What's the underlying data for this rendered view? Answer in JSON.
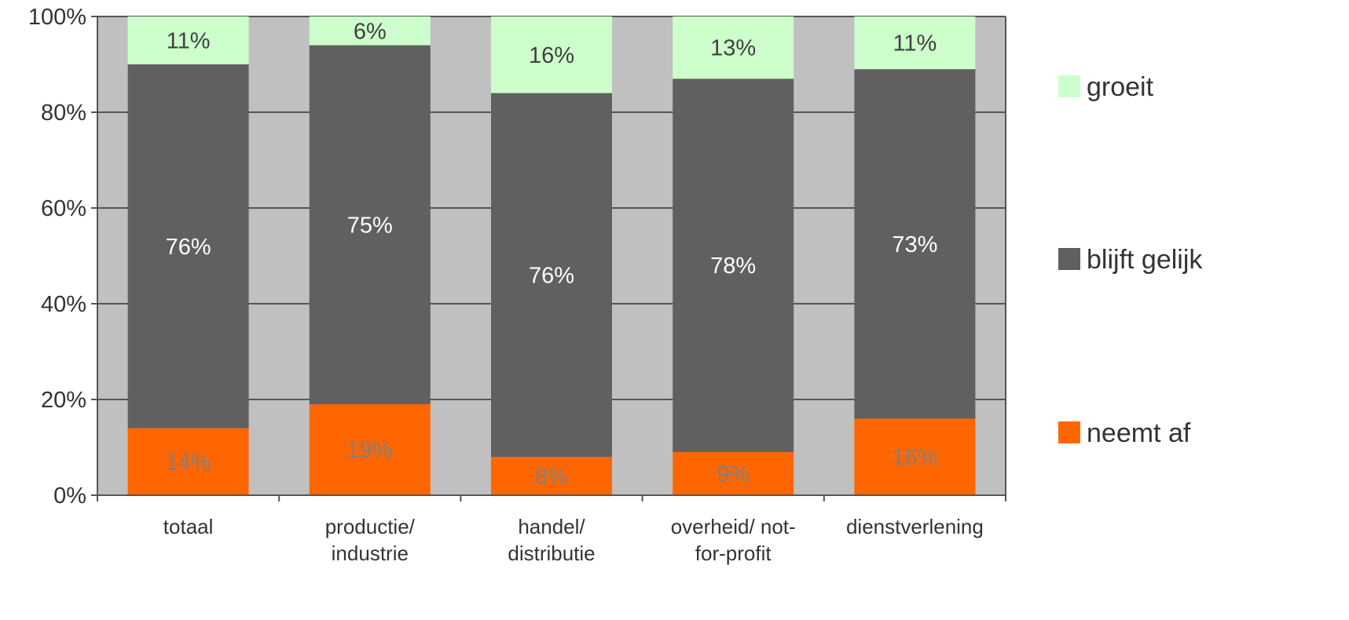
{
  "chart_data": {
    "type": "bar",
    "stacked": true,
    "percent": true,
    "categories": [
      [
        "totaal"
      ],
      [
        "productie/",
        "industrie"
      ],
      [
        "handel/",
        "distributie"
      ],
      [
        "overheid/ not-",
        "for-profit"
      ],
      [
        "dienstverlening"
      ]
    ],
    "series": [
      {
        "name": "neemt af",
        "color": "#FF6600",
        "label_color": "#808080",
        "values": [
          14,
          19,
          8,
          9,
          16
        ],
        "labels": [
          "14%",
          "19%",
          "8%",
          "9%",
          "16%"
        ]
      },
      {
        "name": "blijft gelijk",
        "color": "#606060",
        "label_color": "#FFFFFF",
        "values": [
          76,
          75,
          76,
          78,
          73
        ],
        "labels": [
          "76%",
          "75%",
          "76%",
          "78%",
          "73%"
        ]
      },
      {
        "name": "groeit",
        "color": "#CCFFCC",
        "label_color": "#404040",
        "values": [
          11,
          6,
          16,
          13,
          11
        ],
        "labels": [
          "11%",
          "6%",
          "16%",
          "13%",
          "11%"
        ]
      }
    ],
    "ylim": [
      0,
      100
    ],
    "yticks": [
      "0%",
      "20%",
      "40%",
      "60%",
      "80%",
      "100%"
    ],
    "grid": true,
    "plot_background": "#C0C0C0",
    "legend": {
      "position": "right",
      "order": [
        "groeit",
        "blijft gelijk",
        "neemt af"
      ]
    },
    "title": "",
    "xlabel": "",
    "ylabel": ""
  }
}
